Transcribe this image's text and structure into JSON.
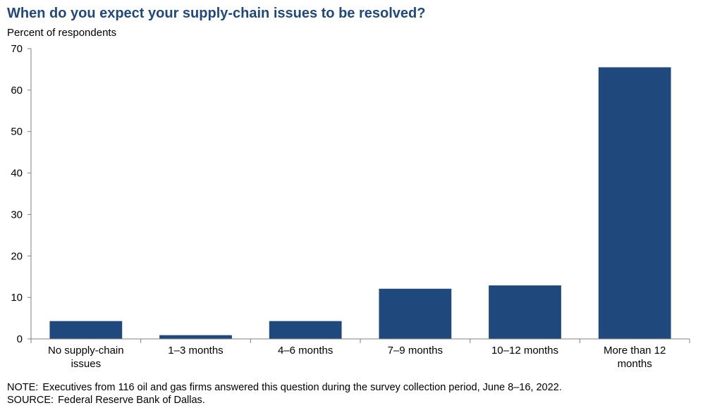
{
  "title": "When do you expect your supply-chain issues to be resolved?",
  "unit_label": "Percent of respondents",
  "notes": {
    "note_label": "NOTE:",
    "note_text": "Executives from 116 oil and gas firms answered this question during the survey collection period, June 8–16, 2022.",
    "source_label": "SOURCE:",
    "source_text": "Federal Reserve Bank of Dallas."
  },
  "chart_data": {
    "type": "bar",
    "categories": [
      [
        "No supply-chain",
        "issues"
      ],
      [
        "1–3 months"
      ],
      [
        "4–6 months"
      ],
      [
        "7–9 months"
      ],
      [
        "10–12 months"
      ],
      [
        "More than 12",
        "months"
      ]
    ],
    "values": [
      4.3,
      0.9,
      4.3,
      12.1,
      12.9,
      65.5
    ],
    "ylim": [
      0,
      70
    ],
    "yticks": [
      "0",
      "10",
      "20",
      "30",
      "40",
      "50",
      "60",
      "70"
    ],
    "bar_color": "#1f497d",
    "grid": false
  }
}
